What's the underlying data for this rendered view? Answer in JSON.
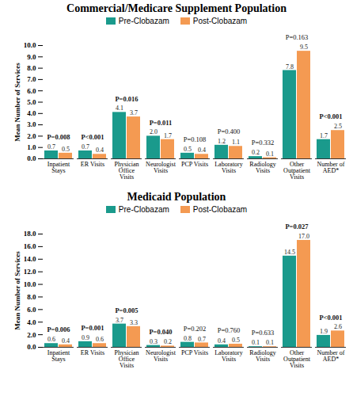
{
  "chart_data": [
    {
      "type": "bar",
      "title": "Commercial/Medicare Supplement Population",
      "y_label": "Mean Number of Services",
      "categories": [
        "Inpatient Stays",
        "ER Visits",
        "Physician Office Visits",
        "Neurologist Visits",
        "PCP Visits",
        "Laboratory Visits",
        "Radiology Visits",
        "Other Outpatient Visits",
        "Number of AED*"
      ],
      "series": [
        {
          "name": "Pre-Clobazam",
          "color": "#1a9a8c",
          "values": [
            0.7,
            0.7,
            4.1,
            2.0,
            0.5,
            1.2,
            0.2,
            7.8,
            1.7
          ],
          "value_labels": [
            "0.7",
            "0.7",
            "4.1",
            "2.0",
            "0.5",
            "1.2",
            "0.2",
            "7.8",
            "1.7"
          ]
        },
        {
          "name": "Post-Clobazam",
          "color": "#f49a52",
          "values": [
            0.5,
            0.4,
            3.7,
            1.7,
            0.4,
            1.1,
            0.1,
            9.5,
            2.5
          ],
          "value_labels": [
            "0.5",
            "0.4",
            "3.7",
            "1.7",
            "0.4",
            "1.1",
            "0.1",
            "9.5",
            "2.5"
          ]
        }
      ],
      "annotations": [
        "P=0.008",
        "P<0.001",
        "P=0.016",
        "P=0.011",
        "P=0.108",
        "P=0.400",
        "P=0.332",
        "P=0.163",
        "P<0.001"
      ],
      "ylim": [
        0,
        10
      ],
      "yticks": [
        {
          "value": 0,
          "label": "0.0"
        },
        {
          "value": 1,
          "label": "1.0"
        },
        {
          "value": 2,
          "label": "2.0"
        },
        {
          "value": 3,
          "label": "3.0"
        },
        {
          "value": 4,
          "label": "4.0"
        },
        {
          "value": 5,
          "label": "5.0"
        },
        {
          "value": 6,
          "label": "6.0"
        },
        {
          "value": 7,
          "label": "7.0"
        },
        {
          "value": 8,
          "label": "8.0"
        },
        {
          "value": 9,
          "label": "9.0"
        },
        {
          "value": 10,
          "label": "10.0"
        }
      ],
      "data_labels": true,
      "legend": "top",
      "grid": false
    },
    {
      "type": "bar",
      "title": "Medicaid Population",
      "y_label": "Mean Number of Services",
      "categories": [
        "Inpatient Stays",
        "ER Visits",
        "Physician Office Visits",
        "Neurologist Visits",
        "PCP Visits",
        "Laboratory Visits",
        "Radiology Visits",
        "Other Outpatient Visits",
        "Number of AED*"
      ],
      "series": [
        {
          "name": "Pre-Clobazam",
          "color": "#1a9a8c",
          "values": [
            0.6,
            0.9,
            3.7,
            0.3,
            0.8,
            0.4,
            0.1,
            14.5,
            1.9
          ],
          "value_labels": [
            "0.6",
            "0.9",
            "3.7",
            "0.3",
            "0.8",
            "0.4",
            "0.1",
            "14.5",
            "1.9"
          ]
        },
        {
          "name": "Post-Clobazam",
          "color": "#f49a52",
          "values": [
            0.4,
            0.6,
            3.3,
            0.2,
            0.7,
            0.5,
            0.1,
            17.0,
            2.6
          ],
          "value_labels": [
            "0.4",
            "0.6",
            "3.3",
            "0.2",
            "0.7",
            "0.5",
            "0.1",
            "17.0",
            "2.6"
          ]
        }
      ],
      "annotations": [
        "P=0.006",
        "P=0.001",
        "P=0.005",
        "P=0.040",
        "P=0.202",
        "P=0.760",
        "P=0.633",
        "P=0.027",
        "P<0.001"
      ],
      "ylim": [
        0,
        18
      ],
      "yticks": [
        {
          "value": 0,
          "label": "0.0"
        },
        {
          "value": 2,
          "label": "2.0"
        },
        {
          "value": 4,
          "label": "4.0"
        },
        {
          "value": 6,
          "label": "6.0"
        },
        {
          "value": 8,
          "label": "8.0"
        },
        {
          "value": 10,
          "label": "10.0"
        },
        {
          "value": 12,
          "label": "12.0"
        },
        {
          "value": 14,
          "label": "14.0"
        },
        {
          "value": 16,
          "label": "16.0"
        },
        {
          "value": 18,
          "label": "18.0"
        }
      ],
      "data_labels": true,
      "legend": "top",
      "grid": false
    }
  ]
}
